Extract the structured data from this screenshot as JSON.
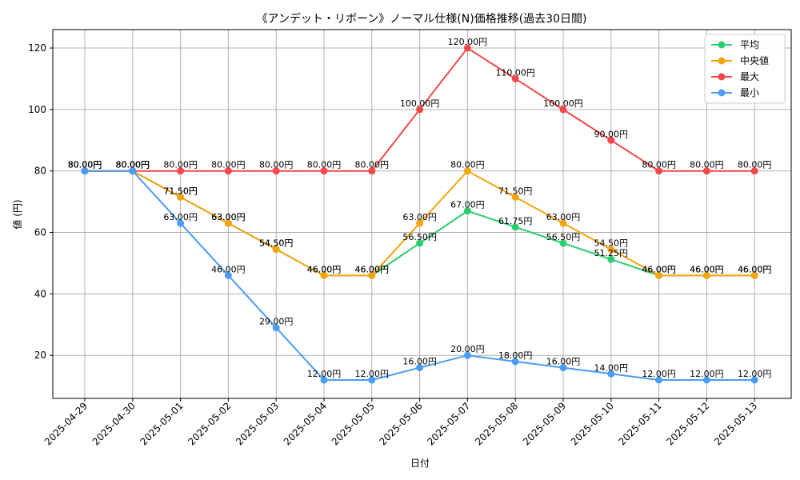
{
  "chart_data": {
    "type": "line",
    "title": "《アンデット・リボーン》ノーマル仕様(N)価格推移(過去30日間)",
    "xlabel": "日付",
    "ylabel": "値 (円)",
    "ylim": [
      6,
      126
    ],
    "yticks": [
      20,
      40,
      60,
      80,
      100,
      120
    ],
    "grid": true,
    "legend_position": "top-right",
    "value_suffix": "円",
    "x": [
      "2025-04-29",
      "2025-04-30",
      "2025-05-01",
      "2025-05-02",
      "2025-05-03",
      "2025-05-04",
      "2025-05-05",
      "2025-05-06",
      "2025-05-07",
      "2025-05-08",
      "2025-05-09",
      "2025-05-10",
      "2025-05-11",
      "2025-05-12",
      "2025-05-13"
    ],
    "series": [
      {
        "name": "平均",
        "color": "#2ecc71",
        "values": [
          80,
          80,
          71.5,
          63,
          54.5,
          46,
          46,
          56.5,
          67,
          61.75,
          56.5,
          51.25,
          46,
          46,
          46
        ]
      },
      {
        "name": "中央値",
        "color": "#f5a30f",
        "values": [
          80,
          80,
          71.5,
          63,
          54.5,
          46,
          46,
          63,
          80,
          71.5,
          63,
          54.5,
          46,
          46,
          46
        ]
      },
      {
        "name": "最大",
        "color": "#f14848",
        "values": [
          80,
          80,
          80,
          80,
          80,
          80,
          80,
          100,
          120,
          110,
          100,
          90,
          80,
          80,
          80
        ]
      },
      {
        "name": "最小",
        "color": "#4a9cf5",
        "values": [
          80,
          80,
          63,
          46,
          29,
          12,
          12,
          16,
          20,
          18,
          16,
          14,
          12,
          12,
          12
        ]
      }
    ]
  }
}
